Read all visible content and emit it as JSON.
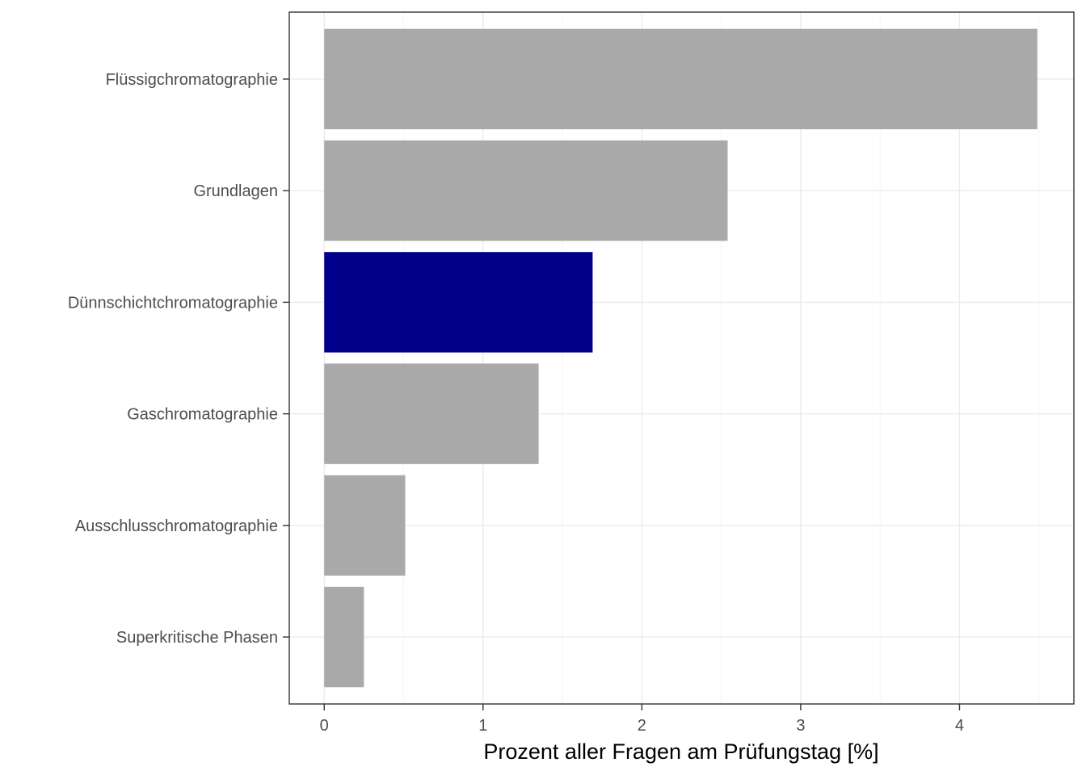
{
  "chart_data": {
    "type": "bar",
    "orientation": "horizontal",
    "title": "",
    "xlabel": "Prozent aller Fragen am Prüfungstag [%]",
    "ylabel": "",
    "xlim": [
      -0.22,
      4.72
    ],
    "x_ticks": [
      0,
      1,
      2,
      3,
      4
    ],
    "grid": true,
    "legend": "none",
    "categories": [
      "Flüssigchromatographie",
      "Grundlagen",
      "Dünnschichtchromatographie",
      "Gaschromatographie",
      "Ausschlusschromatographie",
      "Superkritische Phasen"
    ],
    "values": [
      4.49,
      2.54,
      1.69,
      1.35,
      0.51,
      0.25
    ],
    "bar_colors": [
      "#a9a9a9",
      "#a9a9a9",
      "#00008b",
      "#a9a9a9",
      "#a9a9a9",
      "#a9a9a9"
    ],
    "highlighted_category": "Dünnschichtchromatographie"
  },
  "colors": {
    "default_bar": "#a9a9a9",
    "highlight_bar": "#00008b",
    "grid_major": "#ebebeb",
    "grid_minor": "#f5f5f5",
    "panel_border": "#333333",
    "tick_text": "#4d4d4d"
  }
}
